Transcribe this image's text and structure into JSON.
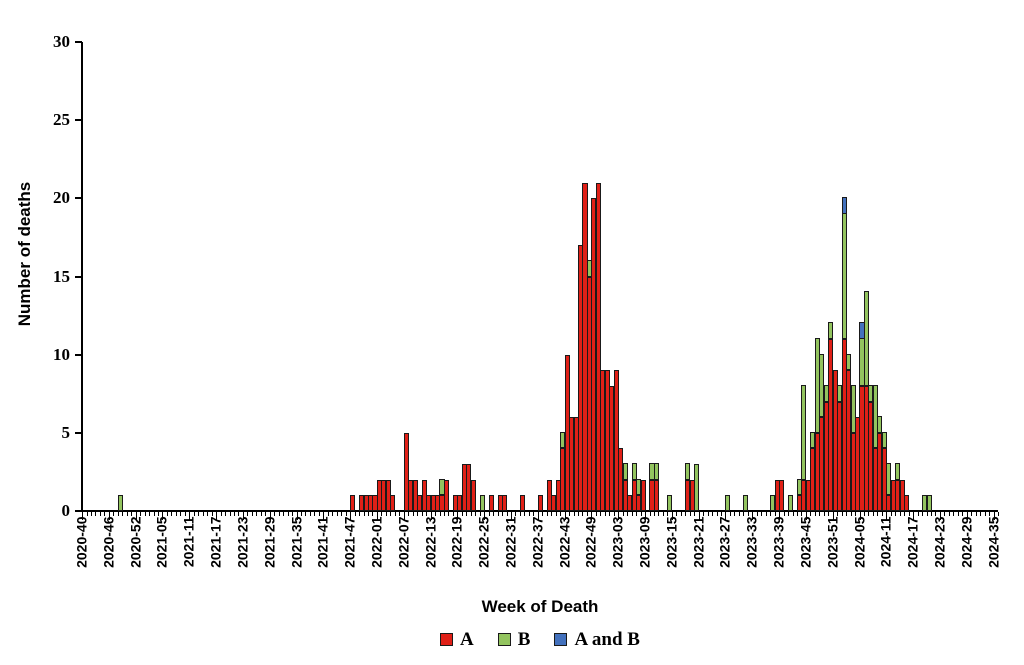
{
  "chart_data": {
    "type": "bar",
    "stacked": true,
    "title": "",
    "xlabel": "Week of Death",
    "ylabel": "Number of deaths",
    "ylim": [
      0,
      30
    ],
    "y_ticks": [
      0,
      5,
      10,
      15,
      20,
      25,
      30
    ],
    "grid": "off",
    "legend_position": "bottom-center",
    "x_domain_start": "2020-40",
    "x_domain_end": "2024-35",
    "x_tick_labels": [
      "2020-40",
      "2020-46",
      "2020-52",
      "2021-05",
      "2021-11",
      "2021-17",
      "2021-23",
      "2021-29",
      "2021-35",
      "2021-41",
      "2021-47",
      "2022-01",
      "2022-07",
      "2022-13",
      "2022-19",
      "2022-25",
      "2022-31",
      "2022-37",
      "2022-43",
      "2022-49",
      "2023-03",
      "2023-09",
      "2023-15",
      "2023-21",
      "2023-27",
      "2023-33",
      "2023-39",
      "2023-45",
      "2023-51",
      "2024-05",
      "2024-11",
      "2024-17",
      "2024-23",
      "2024-29",
      "2024-35"
    ],
    "series": [
      {
        "name": "A",
        "color": "#e02017"
      },
      {
        "name": "B",
        "color": "#93c45f"
      },
      {
        "name": "A and B",
        "color": "#4371bd"
      }
    ],
    "weeks": {
      "2020-48": [
        0,
        1,
        0
      ],
      "2021-47": [
        1,
        0,
        0
      ],
      "2021-49": [
        1,
        0,
        0
      ],
      "2021-50": [
        1,
        0,
        0
      ],
      "2021-51": [
        1,
        0,
        0
      ],
      "2021-52": [
        1,
        0,
        0
      ],
      "2022-01": [
        2,
        0,
        0
      ],
      "2022-02": [
        2,
        0,
        0
      ],
      "2022-03": [
        2,
        0,
        0
      ],
      "2022-04": [
        1,
        0,
        0
      ],
      "2022-07": [
        5,
        0,
        0
      ],
      "2022-08": [
        2,
        0,
        0
      ],
      "2022-09": [
        2,
        0,
        0
      ],
      "2022-10": [
        1,
        0,
        0
      ],
      "2022-11": [
        2,
        0,
        0
      ],
      "2022-12": [
        1,
        0,
        0
      ],
      "2022-13": [
        1,
        0,
        0
      ],
      "2022-14": [
        1,
        0,
        0
      ],
      "2022-15": [
        1,
        1,
        0
      ],
      "2022-16": [
        2,
        0,
        0
      ],
      "2022-18": [
        1,
        0,
        0
      ],
      "2022-19": [
        1,
        0,
        0
      ],
      "2022-20": [
        3,
        0,
        0
      ],
      "2022-21": [
        3,
        0,
        0
      ],
      "2022-22": [
        2,
        0,
        0
      ],
      "2022-24": [
        0,
        1,
        0
      ],
      "2022-26": [
        1,
        0,
        0
      ],
      "2022-28": [
        1,
        0,
        0
      ],
      "2022-29": [
        1,
        0,
        0
      ],
      "2022-33": [
        1,
        0,
        0
      ],
      "2022-37": [
        1,
        0,
        0
      ],
      "2022-39": [
        2,
        0,
        0
      ],
      "2022-40": [
        1,
        0,
        0
      ],
      "2022-41": [
        2,
        0,
        0
      ],
      "2022-42": [
        4,
        1,
        0
      ],
      "2022-43": [
        10,
        0,
        0
      ],
      "2022-44": [
        6,
        0,
        0
      ],
      "2022-45": [
        6,
        0,
        0
      ],
      "2022-46": [
        17,
        0,
        0
      ],
      "2022-47": [
        21,
        0,
        0
      ],
      "2022-48": [
        15,
        1,
        0
      ],
      "2022-49": [
        20,
        0,
        0
      ],
      "2022-50": [
        21,
        0,
        0
      ],
      "2022-51": [
        9,
        0,
        0
      ],
      "2022-52": [
        9,
        0,
        0
      ],
      "2023-01": [
        8,
        0,
        0
      ],
      "2023-02": [
        9,
        0,
        0
      ],
      "2023-03": [
        4,
        0,
        0
      ],
      "2023-04": [
        2,
        1,
        0
      ],
      "2023-05": [
        1,
        0,
        0
      ],
      "2023-06": [
        2,
        1,
        0
      ],
      "2023-07": [
        1,
        1,
        0
      ],
      "2023-08": [
        2,
        0,
        0
      ],
      "2023-10": [
        2,
        1,
        0
      ],
      "2023-11": [
        2,
        1,
        0
      ],
      "2023-14": [
        0,
        1,
        0
      ],
      "2023-18": [
        2,
        1,
        0
      ],
      "2023-19": [
        2,
        0,
        0
      ],
      "2023-20": [
        0,
        3,
        0
      ],
      "2023-27": [
        0,
        1,
        0
      ],
      "2023-31": [
        0,
        1,
        0
      ],
      "2023-37": [
        0,
        1,
        0
      ],
      "2023-38": [
        2,
        0,
        0
      ],
      "2023-39": [
        2,
        0,
        0
      ],
      "2023-41": [
        0,
        1,
        0
      ],
      "2023-43": [
        1,
        1,
        0
      ],
      "2023-44": [
        2,
        6,
        0
      ],
      "2023-45": [
        2,
        0,
        0
      ],
      "2023-46": [
        4,
        1,
        0
      ],
      "2023-47": [
        5,
        6,
        0
      ],
      "2023-48": [
        6,
        4,
        0
      ],
      "2023-49": [
        7,
        1,
        0
      ],
      "2023-50": [
        11,
        1,
        0
      ],
      "2023-51": [
        9,
        0,
        0
      ],
      "2023-52": [
        7,
        1,
        0
      ],
      "2024-01": [
        11,
        8,
        1
      ],
      "2024-02": [
        9,
        1,
        0
      ],
      "2024-03": [
        5,
        3,
        0
      ],
      "2024-04": [
        6,
        0,
        0
      ],
      "2024-05": [
        8,
        3,
        1
      ],
      "2024-06": [
        8,
        6,
        0
      ],
      "2024-07": [
        7,
        1,
        0
      ],
      "2024-08": [
        4,
        4,
        0
      ],
      "2024-09": [
        5,
        1,
        0
      ],
      "2024-10": [
        4,
        1,
        0
      ],
      "2024-11": [
        1,
        2,
        0
      ],
      "2024-12": [
        2,
        0,
        0
      ],
      "2024-13": [
        2,
        1,
        0
      ],
      "2024-14": [
        2,
        0,
        0
      ],
      "2024-15": [
        1,
        0,
        0
      ],
      "2024-19": [
        0,
        1,
        0
      ],
      "2024-20": [
        0,
        1,
        0
      ]
    }
  }
}
